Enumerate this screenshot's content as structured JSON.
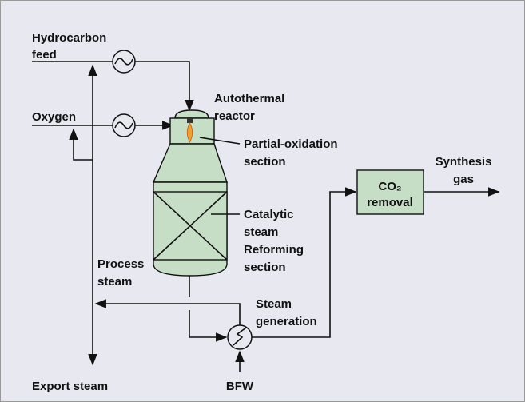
{
  "labels": {
    "hydrocarbon_feed": [
      "Hydrocarbon",
      "feed"
    ],
    "oxygen": [
      "Oxygen"
    ],
    "autothermal_reactor": [
      "Autothermal",
      "reactor"
    ],
    "partial_oxidation": [
      "Partial-oxidation",
      "section"
    ],
    "catalytic_reforming": [
      "Catalytic",
      "steam",
      "Reforming",
      "section"
    ],
    "co2_removal": [
      "CO₂",
      "removal"
    ],
    "synthesis_gas": [
      "Synthesis",
      "gas"
    ],
    "process_steam": [
      "Process",
      "steam"
    ],
    "steam_generation": [
      "Steam",
      "generation"
    ],
    "export_steam": [
      "Export steam"
    ],
    "bfw": [
      "BFW"
    ]
  }
}
